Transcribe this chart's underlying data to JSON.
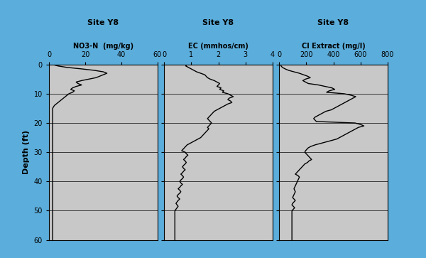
{
  "title": "Site Y8",
  "panel1_xlabel": "NO3-N  (mg/kg)",
  "panel2_xlabel": "EC (mmhos/cm)",
  "panel3_xlabel": "Cl Extract (mg/l)",
  "ylabel": "Depth (ft)",
  "panel1_xlim": [
    0,
    60
  ],
  "panel2_xlim": [
    0,
    4
  ],
  "panel3_xlim": [
    0,
    800
  ],
  "panel1_xticks": [
    0,
    20,
    40,
    60
  ],
  "panel2_xticks": [
    0,
    1,
    2,
    3,
    4
  ],
  "panel3_xticks": [
    0,
    200,
    400,
    600,
    800
  ],
  "ylim": [
    60,
    0
  ],
  "yticks": [
    0,
    10,
    20,
    30,
    40,
    50,
    60
  ],
  "bg_color": "#c8c8c8",
  "border_color": "#5baddb",
  "line_color": "#000000",
  "panel1_depth": [
    0,
    0.5,
    1,
    1.5,
    2,
    2.5,
    3,
    3.5,
    4,
    4.5,
    5,
    5.5,
    6,
    6.5,
    7,
    7.5,
    8,
    8.5,
    9,
    9.5,
    10,
    10.5,
    11,
    11.5,
    12,
    12.5,
    13,
    13.5,
    14,
    14.5,
    15,
    15.5,
    16,
    16.5,
    17,
    17.5,
    18,
    18.5,
    19,
    19.5,
    20,
    21,
    22,
    23,
    24,
    25,
    26,
    27,
    28,
    29,
    30,
    32,
    34,
    36,
    38,
    40,
    42,
    44,
    46,
    48,
    50,
    52,
    54,
    56,
    58,
    60
  ],
  "panel1_values": [
    2,
    5,
    10,
    18,
    25,
    30,
    32,
    30,
    28,
    26,
    22,
    18,
    15,
    16,
    18,
    15,
    13,
    12,
    14,
    13,
    11,
    10,
    9,
    8,
    7,
    6,
    5,
    4,
    3,
    2.5,
    2,
    2,
    2,
    2,
    2,
    2,
    2,
    2,
    2,
    2,
    2,
    2,
    2,
    2,
    2,
    2,
    2,
    2,
    2,
    2,
    2,
    2,
    2,
    2,
    2,
    2,
    2,
    2,
    2,
    2,
    2,
    2,
    2,
    2,
    2,
    2
  ],
  "panel2_depth": [
    0,
    0.5,
    1,
    1.5,
    2,
    2.5,
    3,
    3.5,
    4,
    4.5,
    5,
    5.5,
    6,
    6.5,
    7,
    7.5,
    8,
    8.5,
    9,
    9.5,
    10,
    10.5,
    11,
    11.5,
    12,
    12.5,
    13,
    13.5,
    14,
    14.5,
    15,
    15.5,
    16,
    16.5,
    17,
    17.5,
    18,
    18.5,
    19,
    19.5,
    20,
    20.5,
    21,
    21.5,
    22,
    22.5,
    23,
    23.5,
    24,
    24.5,
    25,
    25.5,
    26,
    26.5,
    27,
    27.5,
    28,
    28.5,
    29,
    29.5,
    30,
    30.5,
    31,
    31.5,
    32,
    32.5,
    33,
    33.5,
    34,
    34.5,
    35,
    35.5,
    36,
    36.5,
    37,
    37.5,
    38,
    38.5,
    39,
    39.5,
    40,
    40.5,
    41,
    41.5,
    42,
    42.5,
    43,
    43.5,
    44,
    44.5,
    45,
    45.5,
    46,
    46.5,
    47,
    47.5,
    48,
    48.5,
    49,
    49.5,
    50,
    51,
    52,
    53,
    54,
    55,
    56,
    57,
    58,
    59,
    60
  ],
  "panel2_values": [
    0.85,
    0.8,
    0.9,
    1.0,
    1.1,
    1.2,
    1.35,
    1.5,
    1.55,
    1.6,
    1.7,
    1.85,
    1.95,
    2.05,
    2.0,
    1.95,
    2.1,
    2.05,
    2.2,
    2.15,
    2.35,
    2.45,
    2.55,
    2.4,
    2.35,
    2.45,
    2.5,
    2.35,
    2.25,
    2.15,
    2.05,
    1.95,
    1.85,
    1.8,
    1.75,
    1.7,
    1.65,
    1.6,
    1.65,
    1.7,
    1.75,
    1.7,
    1.65,
    1.6,
    1.65,
    1.6,
    1.55,
    1.5,
    1.45,
    1.4,
    1.35,
    1.25,
    1.15,
    1.05,
    0.95,
    0.85,
    0.8,
    0.75,
    0.7,
    0.65,
    0.78,
    0.82,
    0.88,
    0.82,
    0.78,
    0.72,
    0.78,
    0.82,
    0.78,
    0.72,
    0.68,
    0.72,
    0.78,
    0.72,
    0.68,
    0.62,
    0.68,
    0.72,
    0.68,
    0.62,
    0.58,
    0.62,
    0.68,
    0.62,
    0.58,
    0.52,
    0.58,
    0.62,
    0.58,
    0.52,
    0.48,
    0.52,
    0.58,
    0.52,
    0.48,
    0.44,
    0.48,
    0.52,
    0.48,
    0.44,
    0.4,
    0.4,
    0.4,
    0.4,
    0.4,
    0.4,
    0.4,
    0.4,
    0.4,
    0.4,
    0.4
  ],
  "panel3_depth": [
    0,
    0.5,
    1,
    1.5,
    2,
    2.5,
    3,
    3.5,
    4,
    4.5,
    5,
    5.5,
    6,
    6.5,
    7,
    7.5,
    8,
    8.5,
    9,
    9.5,
    10,
    10.5,
    11,
    11.5,
    12,
    12.5,
    13,
    13.5,
    14,
    14.5,
    15,
    15.5,
    16,
    16.5,
    17,
    17.5,
    18,
    18.5,
    19,
    19.5,
    20,
    20.5,
    21,
    21.5,
    22,
    22.5,
    23,
    23.5,
    24,
    24.5,
    25,
    25.5,
    26,
    26.5,
    27,
    27.5,
    28,
    28.5,
    29,
    29.5,
    30,
    30.5,
    31,
    31.5,
    32,
    32.5,
    33,
    33.5,
    34,
    34.5,
    35,
    35.5,
    36,
    36.5,
    37,
    37.5,
    38,
    38.5,
    39,
    39.5,
    40,
    40.5,
    41,
    41.5,
    42,
    42.5,
    43,
    43.5,
    44,
    44.5,
    45,
    45.5,
    46,
    46.5,
    47,
    47.5,
    48,
    48.5,
    49,
    49.5,
    50,
    51,
    52,
    53,
    54,
    55,
    56,
    57,
    58,
    59,
    60
  ],
  "panel3_values": [
    10,
    15,
    25,
    45,
    70,
    110,
    150,
    180,
    210,
    230,
    195,
    175,
    195,
    215,
    290,
    340,
    390,
    410,
    370,
    350,
    480,
    530,
    565,
    545,
    525,
    505,
    485,
    465,
    445,
    425,
    405,
    385,
    345,
    325,
    305,
    285,
    265,
    255,
    265,
    275,
    560,
    600,
    625,
    585,
    565,
    545,
    525,
    505,
    485,
    465,
    445,
    425,
    385,
    345,
    305,
    265,
    235,
    215,
    205,
    195,
    190,
    200,
    210,
    220,
    230,
    240,
    220,
    210,
    190,
    180,
    170,
    160,
    150,
    140,
    130,
    120,
    140,
    150,
    145,
    140,
    135,
    130,
    125,
    120,
    115,
    110,
    115,
    120,
    115,
    110,
    105,
    100,
    110,
    120,
    110,
    100,
    95,
    105,
    115,
    105,
    95,
    95,
    95,
    95,
    95,
    95,
    95,
    95,
    95,
    95,
    95
  ]
}
